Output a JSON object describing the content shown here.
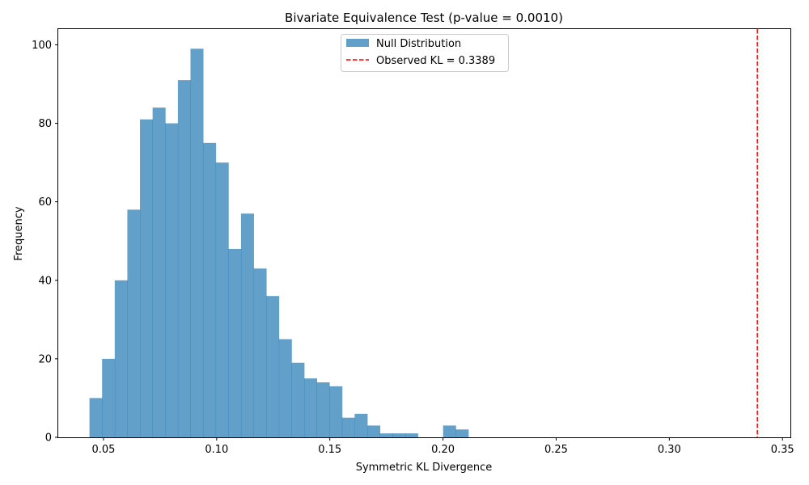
{
  "chart_data": {
    "type": "bar",
    "title": "Bivariate Equivalence Test (p-value = 0.0010)",
    "xlabel": "Symmetric KL Divergence",
    "ylabel": "Frequency",
    "xlim": [
      0.03,
      0.3535
    ],
    "ylim": [
      0,
      104
    ],
    "xticks": [
      0.05,
      0.1,
      0.15,
      0.2,
      0.25,
      0.3,
      0.35
    ],
    "xtick_labels": [
      "0.05",
      "0.10",
      "0.15",
      "0.20",
      "0.25",
      "0.30",
      "0.35"
    ],
    "yticks": [
      0,
      20,
      40,
      60,
      80,
      100
    ],
    "ytick_labels": [
      "0",
      "20",
      "40",
      "60",
      "80",
      "100"
    ],
    "grid": false,
    "legend_position": "top-center",
    "series": [
      {
        "name": "Null Distribution",
        "kind": "histogram",
        "color": "#1f77b4",
        "opacity": 0.7,
        "bin_start": 0.0438,
        "bin_width": 0.00558,
        "counts": [
          10,
          20,
          40,
          58,
          81,
          84,
          80,
          91,
          99,
          75,
          70,
          48,
          57,
          43,
          36,
          25,
          19,
          15,
          14,
          13,
          5,
          6,
          3,
          1,
          1,
          1,
          0,
          0,
          3,
          2
        ]
      },
      {
        "name": "Observed KL = 0.3389",
        "kind": "vline",
        "x": 0.3389,
        "color": "#ff0000",
        "linestyle": "dashed"
      }
    ]
  }
}
